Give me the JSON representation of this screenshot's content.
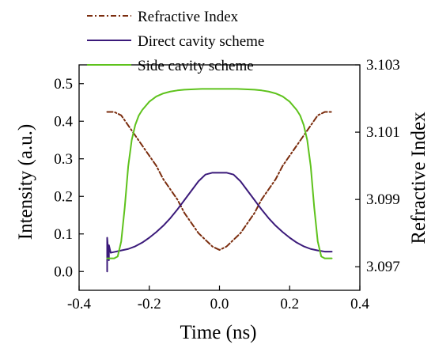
{
  "chart_data": {
    "type": "line",
    "xlabel": "Time (ns)",
    "ylabel": "Intensity (a.u.)",
    "y2label": "Refractive Index",
    "xlim": [
      -0.4,
      0.4
    ],
    "ylim": [
      -0.05,
      0.55
    ],
    "y2lim": [
      3.0963,
      3.103
    ],
    "x_ticks": [
      "-0.4",
      "-0.2",
      "0.0",
      "0.2",
      "0.4"
    ],
    "y_ticks": [
      "0.0",
      "0.1",
      "0.2",
      "0.3",
      "0.4",
      "0.5"
    ],
    "y2_ticks": [
      "3.097",
      "3.099",
      "3.101",
      "3.103"
    ],
    "grid": false,
    "legend_position": "top-center",
    "series": [
      {
        "name": "Refractive Index",
        "axis": "right",
        "style": "dash-dot",
        "color": "#7b2d0e",
        "x": [
          -0.32,
          -0.3,
          -0.28,
          -0.26,
          -0.24,
          -0.22,
          -0.2,
          -0.18,
          -0.16,
          -0.14,
          -0.12,
          -0.1,
          -0.08,
          -0.06,
          -0.04,
          -0.02,
          0.0,
          0.02,
          0.04,
          0.06,
          0.08,
          0.1,
          0.12,
          0.14,
          0.16,
          0.18,
          0.2,
          0.22,
          0.24,
          0.26,
          0.28,
          0.3,
          0.32
        ],
        "y": [
          3.1016,
          3.1016,
          3.1015,
          3.1012,
          3.1009,
          3.1006,
          3.1003,
          3.1,
          3.0996,
          3.0993,
          3.099,
          3.0986,
          3.0983,
          3.098,
          3.0978,
          3.0976,
          3.0975,
          3.0976,
          3.0978,
          3.098,
          3.0983,
          3.0986,
          3.099,
          3.0993,
          3.0996,
          3.1,
          3.1003,
          3.1006,
          3.1009,
          3.1012,
          3.1015,
          3.1016,
          3.1016
        ]
      },
      {
        "name": "Direct cavity scheme",
        "axis": "left",
        "style": "solid",
        "color": "#3b1a7a",
        "x": [
          -0.32,
          -0.32,
          -0.315,
          -0.315,
          -0.31,
          -0.3,
          -0.28,
          -0.26,
          -0.24,
          -0.22,
          -0.2,
          -0.18,
          -0.16,
          -0.14,
          -0.12,
          -0.1,
          -0.08,
          -0.06,
          -0.04,
          -0.02,
          0.0,
          0.02,
          0.04,
          0.06,
          0.08,
          0.1,
          0.12,
          0.14,
          0.16,
          0.18,
          0.2,
          0.22,
          0.24,
          0.26,
          0.28,
          0.3,
          0.32
        ],
        "y": [
          0.0,
          0.09,
          0.03,
          0.07,
          0.05,
          0.052,
          0.056,
          0.06,
          0.067,
          0.077,
          0.09,
          0.105,
          0.122,
          0.142,
          0.165,
          0.19,
          0.215,
          0.24,
          0.258,
          0.263,
          0.263,
          0.263,
          0.258,
          0.24,
          0.215,
          0.19,
          0.165,
          0.142,
          0.122,
          0.105,
          0.09,
          0.077,
          0.067,
          0.06,
          0.056,
          0.053,
          0.053
        ]
      },
      {
        "name": "Side cavity scheme",
        "axis": "left",
        "style": "solid",
        "color": "#5ec21c",
        "x": [
          -0.32,
          -0.3,
          -0.29,
          -0.28,
          -0.27,
          -0.26,
          -0.25,
          -0.24,
          -0.23,
          -0.22,
          -0.2,
          -0.18,
          -0.16,
          -0.14,
          -0.12,
          -0.1,
          -0.05,
          0.0,
          0.05,
          0.1,
          0.12,
          0.14,
          0.16,
          0.18,
          0.2,
          0.22,
          0.23,
          0.24,
          0.25,
          0.26,
          0.27,
          0.28,
          0.29,
          0.3,
          0.32
        ],
        "y": [
          0.035,
          0.035,
          0.04,
          0.08,
          0.17,
          0.28,
          0.35,
          0.39,
          0.415,
          0.43,
          0.452,
          0.466,
          0.474,
          0.479,
          0.482,
          0.484,
          0.486,
          0.486,
          0.486,
          0.484,
          0.482,
          0.479,
          0.474,
          0.466,
          0.452,
          0.43,
          0.415,
          0.39,
          0.35,
          0.28,
          0.17,
          0.08,
          0.04,
          0.035,
          0.035
        ]
      }
    ]
  }
}
